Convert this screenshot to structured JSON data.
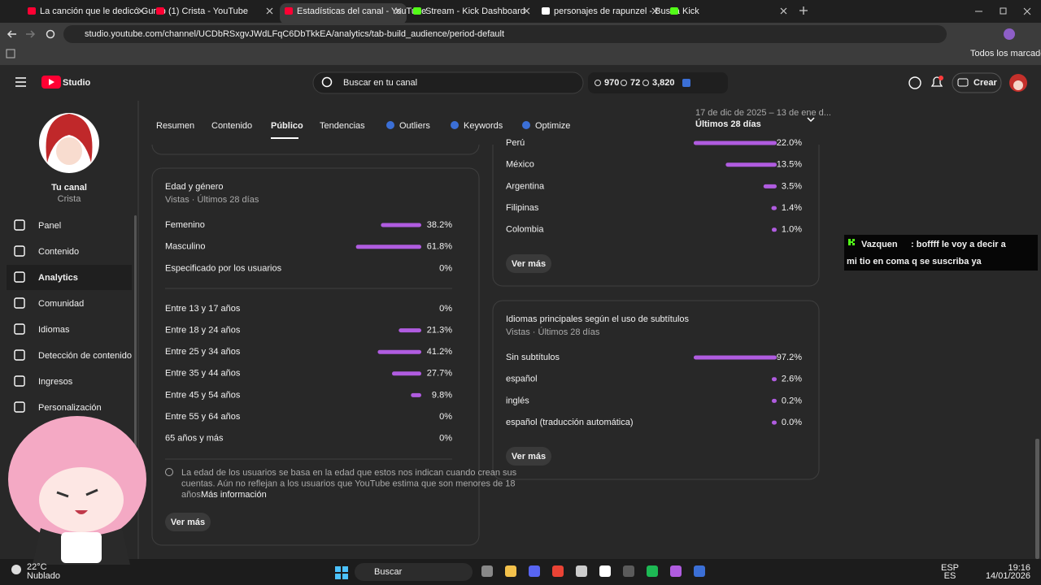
{
  "browser": {
    "tabs": [
      "La canción que le dedicó Gumb",
      "(1) Crista - YouTube",
      "Estadísticas del canal - YouTube",
      "Stream - Kick Dashboard",
      "personajes de rapunzel - Busca",
      "Kick"
    ],
    "url": "studio.youtube.com/channel/UCDbRSxgvJWdLFqC6DbTkkEA/analytics/tab-build_audience/period-default",
    "bookmarks": "Todos los marcadores"
  },
  "header": {
    "logo": "Studio",
    "search": "Buscar en tu canal",
    "stats": [
      "970",
      "72",
      "3,820"
    ],
    "create": "Crear"
  },
  "sidebar": {
    "channel_title": "Tu canal",
    "channel_name": "Crista",
    "items": [
      "Panel",
      "Contenido",
      "Analytics",
      "Comunidad",
      "Idiomas",
      "Detección de contenido",
      "Ingresos",
      "Personalización"
    ]
  },
  "tabs": [
    "Resumen",
    "Contenido",
    "Público",
    "Tendencias",
    "Outliers",
    "Keywords",
    "Optimize"
  ],
  "period": {
    "range": "17 de dic de 2025 – 13 de ene d...",
    "label": "Últimos 28 días"
  },
  "age_gender": {
    "title": "Edad y género",
    "subtitle": "Vistas · Últimos 28 días",
    "gender": [
      {
        "label": "Femenino",
        "percent": 38.2,
        "text": "38.2%"
      },
      {
        "label": "Masculino",
        "percent": 61.8,
        "text": "61.8%"
      },
      {
        "label": "Especificado por los usuarios",
        "percent": 0,
        "text": "0%"
      }
    ],
    "ages": [
      {
        "label": "Entre 13 y 17 años",
        "percent": 0,
        "text": "0%"
      },
      {
        "label": "Entre 18 y 24 años",
        "percent": 21.3,
        "text": "21.3%"
      },
      {
        "label": "Entre 25 y 34 años",
        "percent": 41.2,
        "text": "41.2%"
      },
      {
        "label": "Entre 35 y 44 años",
        "percent": 27.7,
        "text": "27.7%"
      },
      {
        "label": "Entre 45 y 54 años",
        "percent": 9.8,
        "text": "9.8%"
      },
      {
        "label": "Entre 55 y 64 años",
        "percent": 0,
        "text": "0%"
      },
      {
        "label": "65 años y más",
        "percent": 0,
        "text": "0%"
      }
    ],
    "note": [
      "La edad de los usuarios se basa en la edad que estos nos indican cuando crean sus",
      "cuentas. Aún no reflejan a los usuarios que YouTube estima que son menores de 18",
      "años."
    ],
    "link": "Más información",
    "button": "Ver más"
  },
  "countries": {
    "rows": [
      {
        "label": "Perú",
        "percent": 22.0,
        "text": "22.0%"
      },
      {
        "label": "México",
        "percent": 13.5,
        "text": "13.5%"
      },
      {
        "label": "Argentina",
        "percent": 3.5,
        "text": "3.5%"
      },
      {
        "label": "Filipinas",
        "percent": 1.4,
        "text": "1.4%"
      },
      {
        "label": "Colombia",
        "percent": 1.0,
        "text": "1.0%"
      }
    ],
    "button": "Ver más"
  },
  "subtitles": {
    "title": "Idiomas principales según el uso de subtítulos",
    "subtitle": "Vistas · Últimos 28 días",
    "rows": [
      {
        "label": "Sin subtítulos",
        "percent": 97.2,
        "text": "97.2%"
      },
      {
        "label": "español",
        "percent": 2.6,
        "text": "2.6%"
      },
      {
        "label": "inglés",
        "percent": 0.2,
        "text": "0.2%"
      },
      {
        "label": "español (traducción automática)",
        "percent": 0.0,
        "text": "0.0%"
      }
    ],
    "button": "Ver más"
  },
  "chat": {
    "user": "Vazquen",
    "message_lines": [
      ": boffff le voy a decir a",
      "mi tio en coma q se suscriba ya"
    ]
  },
  "taskbar": {
    "temp": "22°C",
    "weather": "Nublado",
    "search": "Buscar",
    "lang": "ESP",
    "lang2": "ES",
    "time": "19:16",
    "date": "14/01/2026"
  }
}
